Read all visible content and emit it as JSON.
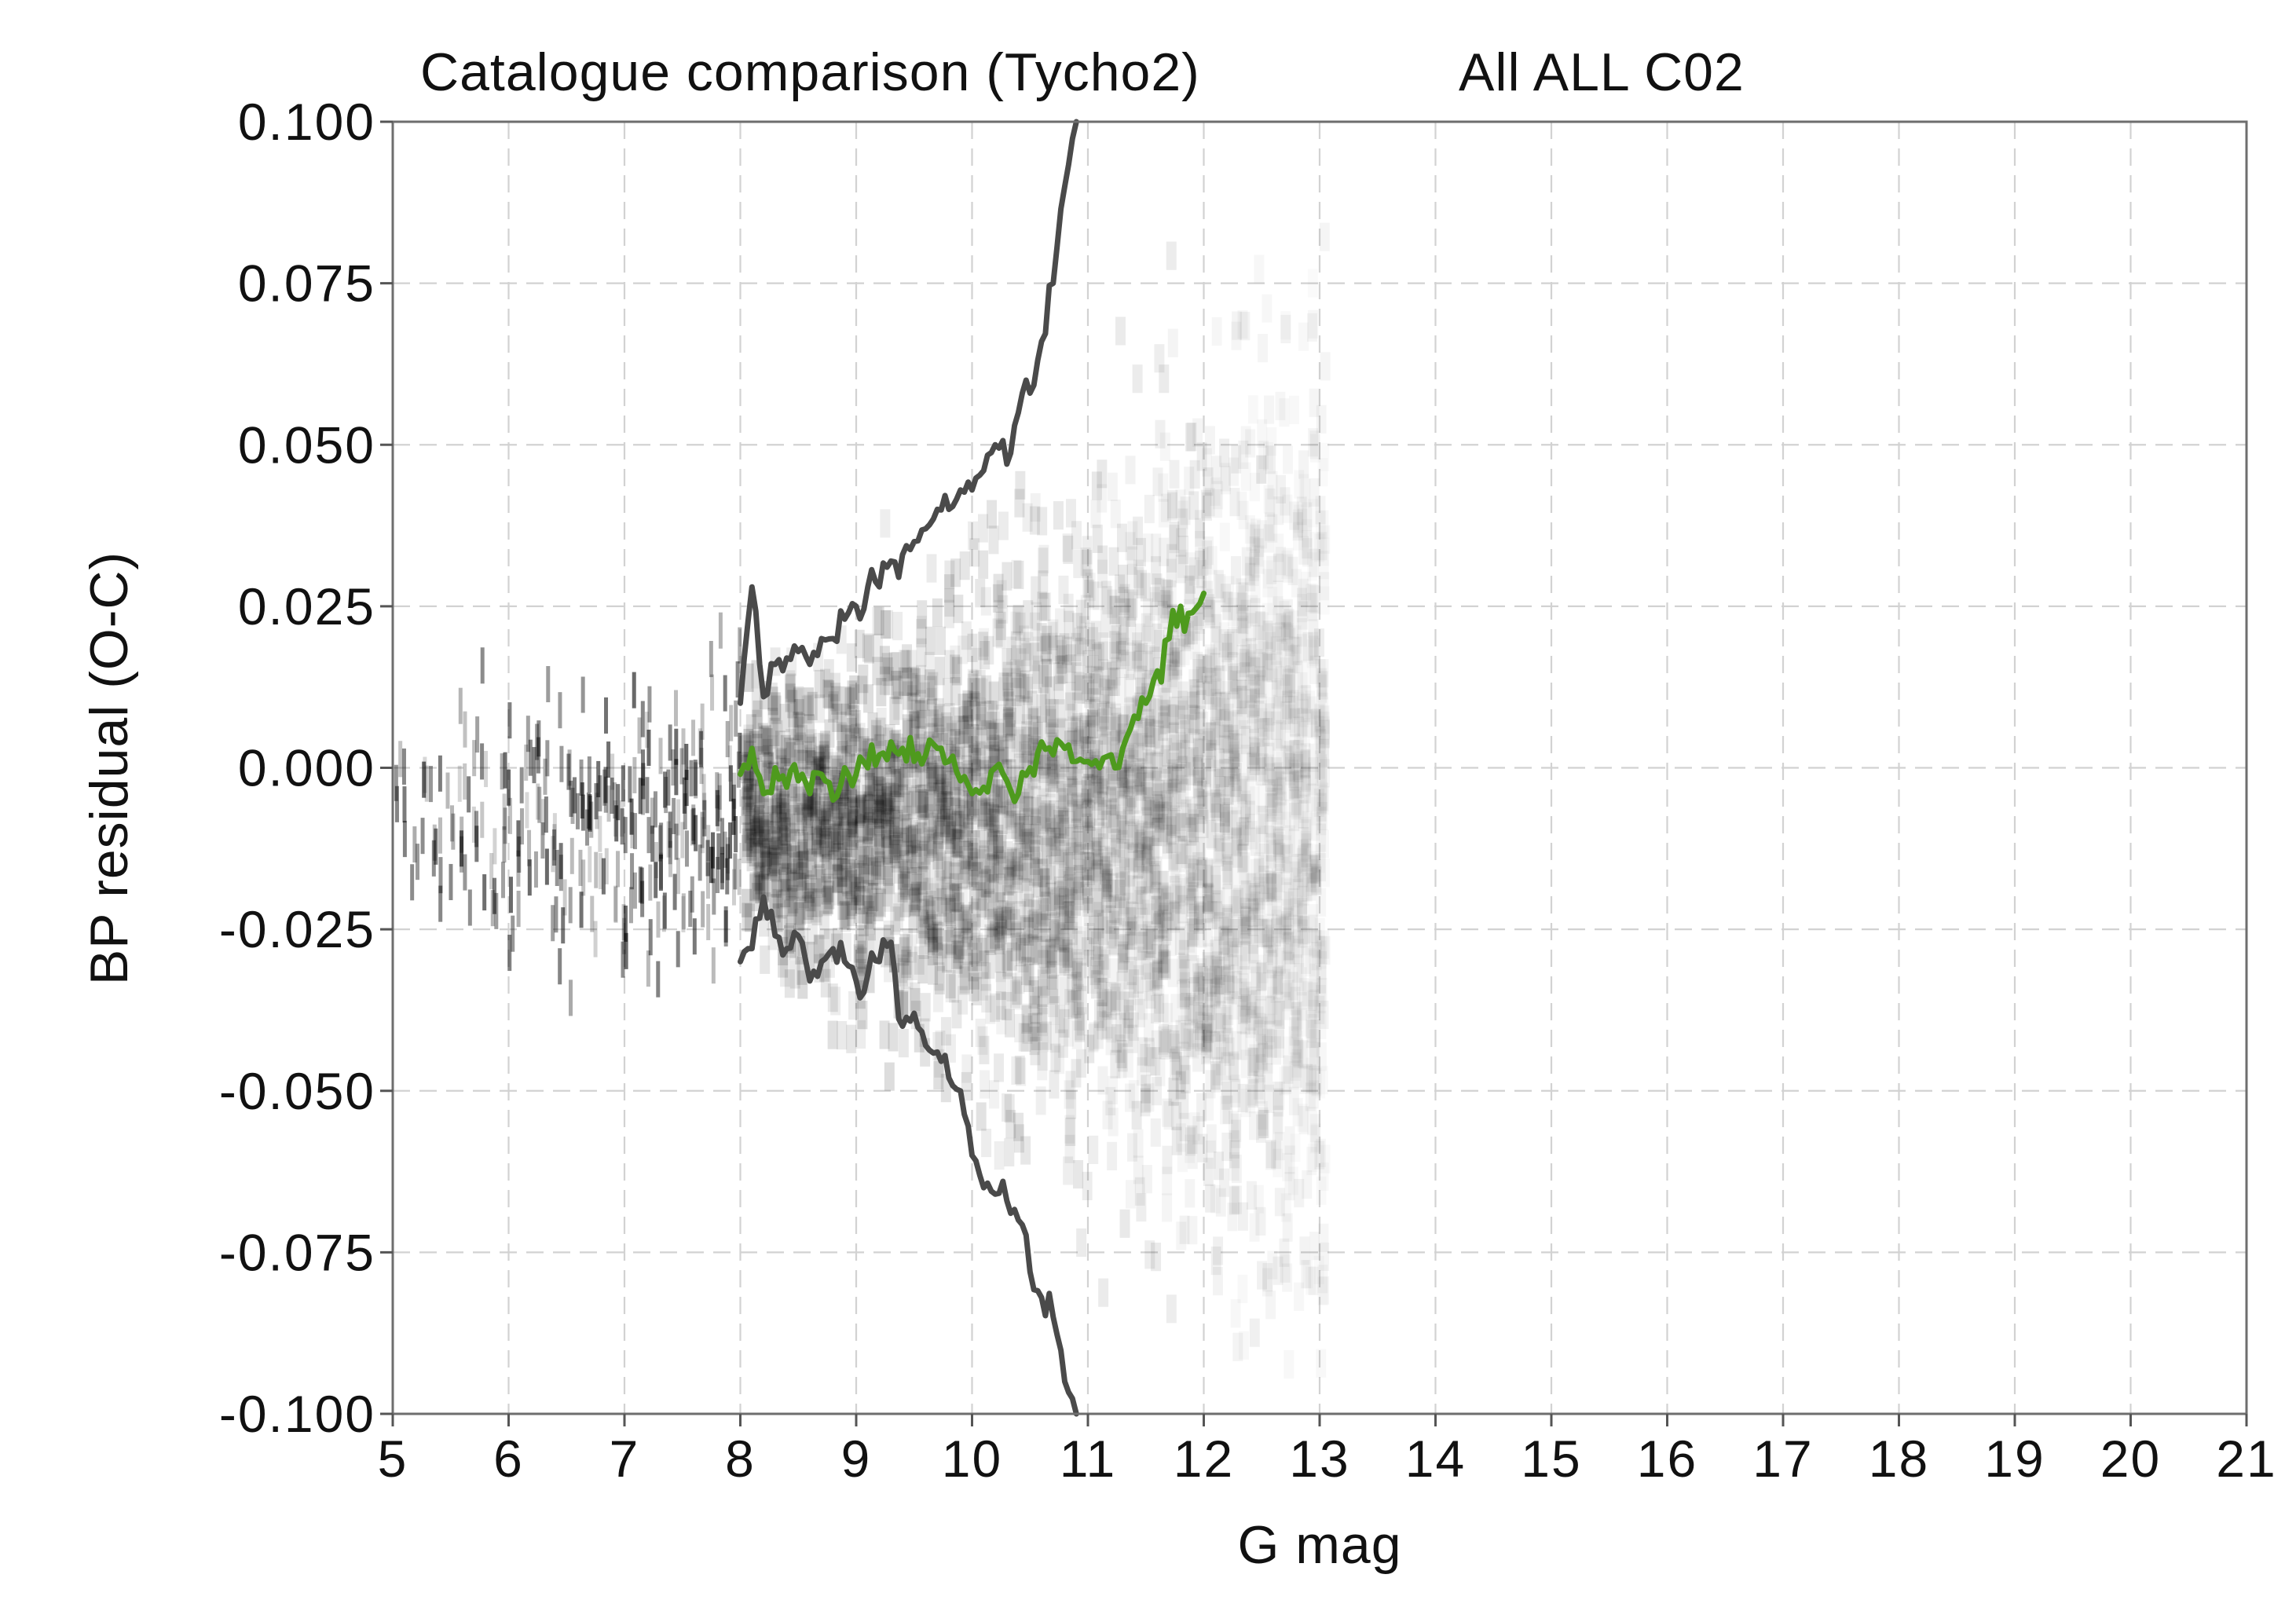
{
  "chart_data": {
    "type": "line",
    "title": "Catalogue comparison (Tycho2)",
    "subtitle": "All ALL C02",
    "xlabel": "G mag",
    "ylabel": "BP residual (O-C)",
    "xlim": [
      5,
      21
    ],
    "ylim": [
      -0.1,
      0.1
    ],
    "x_ticks": [
      5,
      6,
      7,
      8,
      9,
      10,
      11,
      12,
      13,
      14,
      15,
      16,
      17,
      18,
      19,
      20,
      21
    ],
    "x_tick_labels": [
      "5",
      "6",
      "7",
      "8",
      "9",
      "10",
      "11",
      "12",
      "13",
      "14",
      "15",
      "16",
      "17",
      "18",
      "19",
      "20",
      "21"
    ],
    "y_ticks": [
      0.1,
      0.075,
      0.05,
      0.025,
      0.0,
      -0.025,
      -0.05,
      -0.075,
      -0.1
    ],
    "y_tick_labels": [
      "0.100",
      "0.075",
      "0.050",
      "0.025",
      "0.000",
      "-0.025",
      "-0.050",
      "-0.075",
      "-0.100"
    ],
    "grid": true,
    "legend": "none",
    "background": "grey density histogram of individual residuals (denser near 0, spanning G 5-13)",
    "colors": {
      "median": "#4e9a1e",
      "spread": "#4a4a4a",
      "density": "#000000",
      "grid": "#d2d2d2"
    },
    "series": [
      {
        "color": "#4a4a4a",
        "role": "upper-spread",
        "x": [
          8.0,
          8.1,
          8.2,
          8.3,
          8.4,
          8.5,
          8.6,
          8.7,
          8.8,
          8.9,
          9.0,
          9.1,
          9.2,
          9.3,
          9.4,
          9.5,
          9.6,
          9.7,
          9.8,
          9.9,
          10.0,
          10.1,
          10.2,
          10.3,
          10.4,
          10.5,
          10.6,
          10.7,
          10.8,
          10.9
        ],
        "values": [
          0.01,
          0.028,
          0.011,
          0.016,
          0.017,
          0.018,
          0.016,
          0.02,
          0.02,
          0.023,
          0.025,
          0.028,
          0.028,
          0.032,
          0.033,
          0.035,
          0.037,
          0.04,
          0.04,
          0.043,
          0.043,
          0.046,
          0.05,
          0.047,
          0.055,
          0.058,
          0.066,
          0.075,
          0.09,
          0.1
        ]
      },
      {
        "color": "#4a4a4a",
        "role": "lower-spread",
        "x": [
          8.0,
          8.1,
          8.2,
          8.3,
          8.4,
          8.5,
          8.6,
          8.7,
          8.8,
          8.9,
          9.0,
          9.1,
          9.2,
          9.3,
          9.4,
          9.5,
          9.6,
          9.7,
          9.8,
          9.9,
          10.0,
          10.1,
          10.2,
          10.3,
          10.4,
          10.5,
          10.6,
          10.7,
          10.8,
          10.9
        ],
        "values": [
          -0.03,
          -0.028,
          -0.02,
          -0.026,
          -0.028,
          -0.026,
          -0.033,
          -0.03,
          -0.028,
          -0.03,
          -0.033,
          -0.032,
          -0.03,
          -0.027,
          -0.04,
          -0.038,
          -0.043,
          -0.044,
          -0.048,
          -0.05,
          -0.06,
          -0.065,
          -0.066,
          -0.067,
          -0.07,
          -0.078,
          -0.082,
          -0.085,
          -0.095,
          -0.1
        ]
      },
      {
        "color": "#4e9a1e",
        "role": "median",
        "x": [
          8.0,
          8.1,
          8.2,
          8.3,
          8.4,
          8.5,
          8.6,
          8.7,
          8.8,
          8.9,
          9.0,
          9.1,
          9.2,
          9.3,
          9.4,
          9.5,
          9.6,
          9.7,
          9.8,
          9.9,
          10.0,
          10.1,
          10.2,
          10.3,
          10.4,
          10.5,
          10.6,
          10.7,
          10.8,
          10.9,
          11.0,
          11.1,
          11.2,
          11.3,
          11.4,
          11.5,
          11.6,
          11.7,
          11.8,
          11.9,
          12.0
        ],
        "values": [
          -0.001,
          0.003,
          -0.004,
          0.0,
          -0.003,
          -0.002,
          -0.004,
          -0.001,
          -0.005,
          0.0,
          -0.001,
          0.0,
          0.002,
          0.004,
          0.003,
          0.001,
          0.002,
          0.003,
          0.001,
          -0.002,
          -0.004,
          -0.003,
          0.0,
          -0.002,
          -0.004,
          0.0,
          0.004,
          0.002,
          0.003,
          0.001,
          0.001,
          0.0,
          0.002,
          0.003,
          0.008,
          0.01,
          0.015,
          0.02,
          0.025,
          0.024,
          0.027
        ]
      }
    ]
  }
}
